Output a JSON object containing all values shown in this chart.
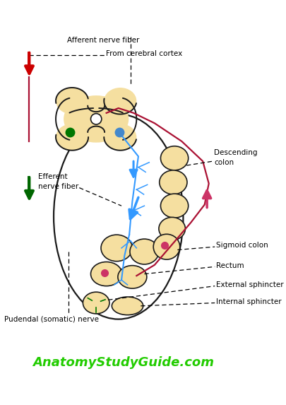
{
  "bg_color": "#ffffff",
  "title_text": "AnatomyStudyGuide.com",
  "title_color": "#22cc00",
  "title_fontsize": 13,
  "body_color": "#f5dfa0",
  "body_outline": "#1a1a1a",
  "labels": {
    "cerebral_cortex": "From cerebral cortex",
    "afferent": "Afferent nerve fiber",
    "efferent": "Efferent\nnerve fiber",
    "descending_colon": "Descending\ncolon",
    "sigmoid_colon": "Sigmoid colon",
    "rectum": "Rectum",
    "external_sphincter": "External sphincter",
    "internal_sphincter": "Internal sphincter",
    "pudendal": "Pudendal (somatic) nerve"
  },
  "label_fontsize": 7.5,
  "red_arrow_color": "#cc0000",
  "green_arrow_color": "#006600",
  "blue_arrow_color": "#3399ff",
  "pink_arrow_color": "#cc3366",
  "dark_red_color": "#aa1133",
  "dot_green": "#007700",
  "dot_blue": "#4488cc",
  "dot_pink": "#cc3366"
}
